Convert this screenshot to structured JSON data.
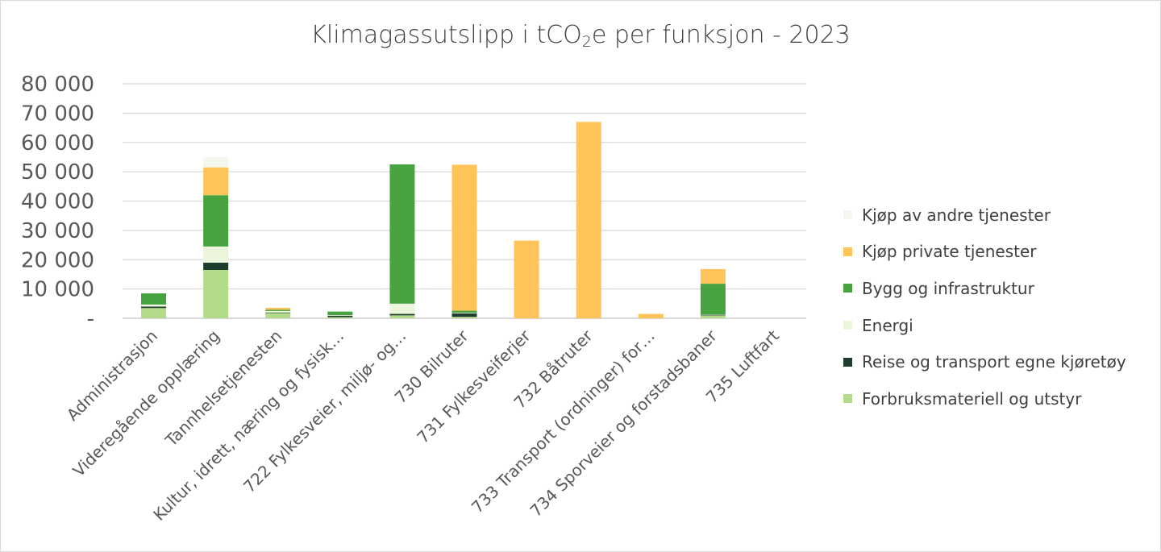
{
  "chart_data": {
    "type": "bar",
    "stacked": true,
    "title_main": "Klimagassutslipp i tCO",
    "title_sub": "2",
    "title_end": "e per funksjon - 2023",
    "categories": [
      "Administrasjon",
      "Videregående opplæring",
      "Tannhelsetjenesten",
      "Kultur, idrett, næring og fysisk…",
      "722 Fylkesveier, miljø- og…",
      "730 Bilruter",
      "731 Fylkesveiferjer",
      "732 Båtruter",
      "733 Transport (ordninger) for…",
      "734 Sporveier og forstadsbaner",
      "735 Luftfart"
    ],
    "series": [
      {
        "name": "Forbruksmateriell og utstyr",
        "color": "#b4db8c",
        "values": [
          3500,
          16500,
          1800,
          400,
          1000,
          500,
          0,
          0,
          0,
          1000,
          0
        ]
      },
      {
        "name": "Reise og transport egne kjøretøy",
        "color": "#1e3d2d",
        "values": [
          500,
          2500,
          200,
          500,
          500,
          1200,
          0,
          0,
          0,
          200,
          0
        ]
      },
      {
        "name": "Energi",
        "color": "#ebf5dc",
        "values": [
          700,
          5500,
          500,
          200,
          3500,
          200,
          0,
          0,
          0,
          100,
          0
        ]
      },
      {
        "name": "Bygg og infrastruktur",
        "color": "#47a33f",
        "values": [
          3800,
          17500,
          400,
          1200,
          47500,
          700,
          0,
          0,
          0,
          10500,
          0
        ]
      },
      {
        "name": "Kjøp private tjenester",
        "color": "#ffc459",
        "values": [
          0,
          9500,
          700,
          0,
          0,
          49800,
          26500,
          67000,
          1500,
          5000,
          0
        ]
      },
      {
        "name": "Kjøp av andre tjenester",
        "color": "#f4f7ee",
        "values": [
          0,
          3500,
          0,
          0,
          0,
          0,
          0,
          0,
          0,
          0,
          0
        ]
      }
    ],
    "yticks": [
      "80 000",
      "70 000",
      "60 000",
      "50 000",
      "40 000",
      "30 000",
      "20 000",
      "10 000",
      "-"
    ],
    "ylim": [
      0,
      80000
    ],
    "grid": true,
    "legend_position": "right"
  }
}
